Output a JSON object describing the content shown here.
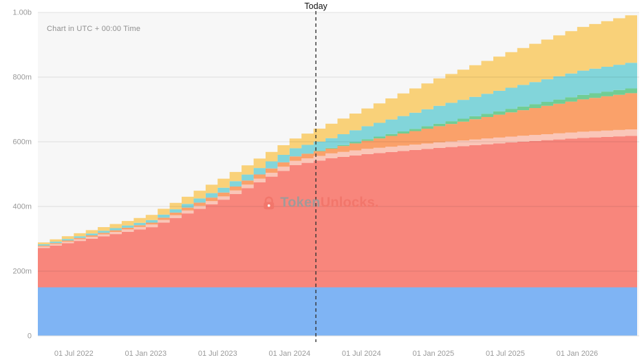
{
  "chart_data": {
    "type": "area",
    "variant": "stacked-stepped-monthly",
    "note": "Chart in UTC + 00:00 Time",
    "today_label": "Today",
    "today_t": 23.2,
    "y_max": 1000,
    "y_unit": "tokens",
    "y_ticks": [
      {
        "label": "0",
        "value": 0
      },
      {
        "label": "200m",
        "value": 200
      },
      {
        "label": "400m",
        "value": 400
      },
      {
        "label": "600m",
        "value": 600
      },
      {
        "label": "800m",
        "value": 800
      },
      {
        "label": "1.00b",
        "value": 1000
      }
    ],
    "x_ticks": [
      {
        "label": "01 Jul 2022",
        "t": 3
      },
      {
        "label": "01 Jan 2023",
        "t": 9
      },
      {
        "label": "01 Jul 2023",
        "t": 15
      },
      {
        "label": "01 Jan 2024",
        "t": 21
      },
      {
        "label": "01 Jul 2024",
        "t": 27
      },
      {
        "label": "01 Jan 2025",
        "t": 33
      },
      {
        "label": "01 Jul 2025",
        "t": 39
      },
      {
        "label": "01 Jan 2026",
        "t": 45
      }
    ],
    "timeline": {
      "months": 51,
      "start": "2022-04",
      "end": "2026-06"
    },
    "plot_bg": "#f7f7f7",
    "grid_color": "rgba(0,0,0,0.10)",
    "axis_line_color": "#dcdcdc",
    "today_line_color": "#333333",
    "series": [
      {
        "name": "blue",
        "color": "#78b0f3",
        "opacity": 0.95,
        "breakpoints": [
          [
            0,
            150
          ],
          [
            50,
            150
          ]
        ]
      },
      {
        "name": "red",
        "color": "#f87f75",
        "opacity": 0.95,
        "breakpoints": [
          [
            0,
            122
          ],
          [
            9,
            186
          ],
          [
            15,
            271
          ],
          [
            21,
            378
          ],
          [
            24,
            399
          ],
          [
            27,
            412
          ],
          [
            33,
            431
          ],
          [
            39,
            448
          ],
          [
            45,
            462
          ],
          [
            50,
            470
          ]
        ]
      },
      {
        "name": "pink",
        "color": "#fac3b4",
        "opacity": 0.95,
        "breakpoints": [
          [
            0,
            4
          ],
          [
            9,
            8
          ],
          [
            15,
            10
          ],
          [
            21,
            13
          ],
          [
            24,
            15
          ],
          [
            27,
            16
          ],
          [
            33,
            17
          ],
          [
            39,
            18
          ],
          [
            45,
            19
          ],
          [
            50,
            20
          ]
        ]
      },
      {
        "name": "orange",
        "color": "#fa9c62",
        "opacity": 0.95,
        "breakpoints": [
          [
            0,
            3
          ],
          [
            9,
            6
          ],
          [
            15,
            12
          ],
          [
            21,
            14
          ],
          [
            24,
            15
          ],
          [
            27,
            25
          ],
          [
            33,
            50
          ],
          [
            39,
            75
          ],
          [
            45,
            100
          ],
          [
            50,
            115
          ]
        ]
      },
      {
        "name": "green",
        "color": "#69ca8e",
        "opacity": 0.95,
        "breakpoints": [
          [
            0,
            0
          ],
          [
            21,
            0
          ],
          [
            24,
            2
          ],
          [
            27,
            5
          ],
          [
            33,
            8
          ],
          [
            39,
            11
          ],
          [
            45,
            14
          ],
          [
            50,
            15
          ]
        ]
      },
      {
        "name": "teal",
        "color": "#7bd3d8",
        "opacity": 0.95,
        "breakpoints": [
          [
            0,
            4
          ],
          [
            9,
            8
          ],
          [
            15,
            15
          ],
          [
            21,
            25
          ],
          [
            24,
            30
          ],
          [
            27,
            40
          ],
          [
            33,
            55
          ],
          [
            39,
            65
          ],
          [
            45,
            75
          ],
          [
            50,
            80
          ]
        ]
      },
      {
        "name": "yellow",
        "color": "#f9cf72",
        "opacity": 0.95,
        "breakpoints": [
          [
            0,
            6
          ],
          [
            9,
            16
          ],
          [
            15,
            28
          ],
          [
            21,
            30
          ],
          [
            24,
            45
          ],
          [
            27,
            55
          ],
          [
            33,
            85
          ],
          [
            39,
            110
          ],
          [
            45,
            135
          ],
          [
            50,
            150
          ]
        ]
      }
    ],
    "watermark": {
      "brand_gray": "Token",
      "brand_coral": "Unlocks.",
      "gray_hex": "#9b9b9b",
      "coral_hex": "#f2756a"
    }
  }
}
